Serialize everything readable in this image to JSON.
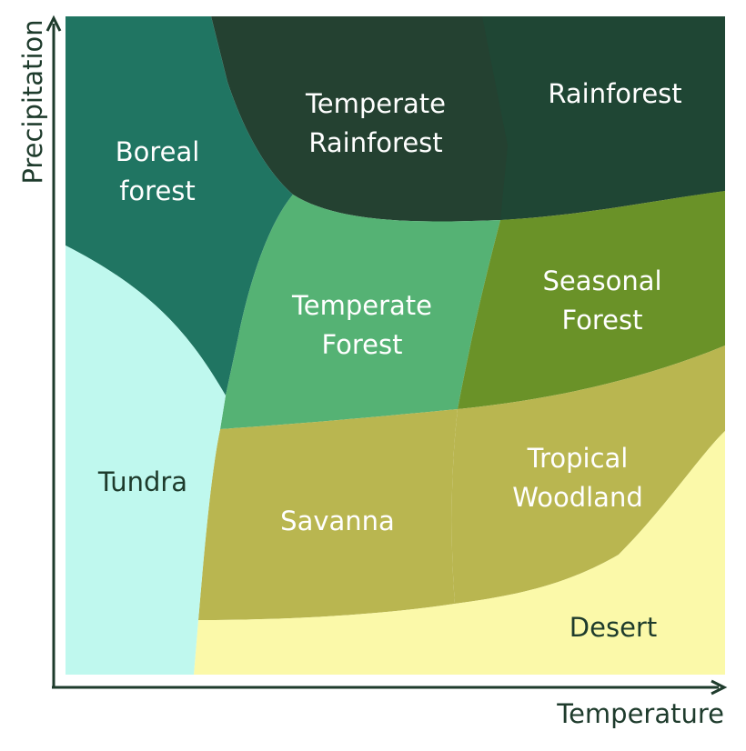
{
  "axes": {
    "x_label": "Temperature",
    "y_label": "Precipitation",
    "axis_color": "#1e3b2c"
  },
  "regions": [
    {
      "id": "tundra",
      "lines": [
        "Tundra"
      ],
      "fill": "#bff8ee",
      "text_color": "#1e3b2c"
    },
    {
      "id": "boreal-forest",
      "lines": [
        "Boreal",
        "forest"
      ],
      "fill": "#207562",
      "text_color": "#ffffff"
    },
    {
      "id": "temperate-rainforest",
      "lines": [
        "Temperate",
        "Rainforest"
      ],
      "fill": "#244131",
      "text_color": "#ffffff"
    },
    {
      "id": "rainforest",
      "lines": [
        "Rainforest"
      ],
      "fill": "#1f4634",
      "text_color": "#ffffff"
    },
    {
      "id": "temperate-forest",
      "lines": [
        "Temperate",
        "Forest"
      ],
      "fill": "#55b274",
      "text_color": "#ffffff"
    },
    {
      "id": "seasonal-forest",
      "lines": [
        "Seasonal",
        "Forest"
      ],
      "fill": "#6a9228",
      "text_color": "#ffffff"
    },
    {
      "id": "savanna",
      "lines": [
        "Savanna"
      ],
      "fill": "#b9b650",
      "text_color": "#ffffff"
    },
    {
      "id": "tropical-woodland",
      "lines": [
        "Tropical",
        "Woodland"
      ],
      "fill": "#b9b650",
      "text_color": "#ffffff"
    },
    {
      "id": "desert",
      "lines": [
        "Desert"
      ],
      "fill": "#fbf9a9",
      "text_color": "#1e3b2c"
    }
  ]
}
